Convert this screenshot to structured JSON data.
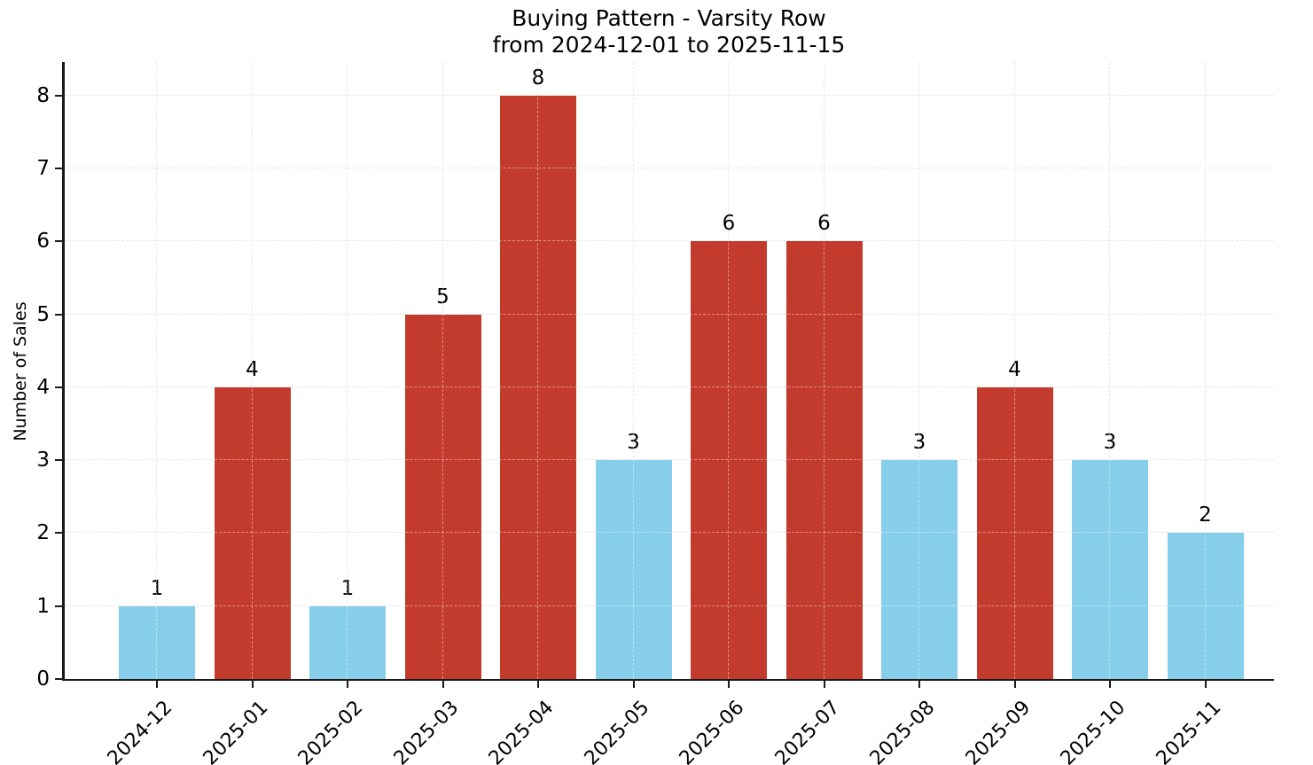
{
  "figure": {
    "title_line1": "Buying Pattern - Varsity Row",
    "title_line2": "from 2024-12-01 to 2025-11-15"
  },
  "chart_data": {
    "type": "bar",
    "title": "Buying Pattern - Varsity Row\nfrom 2024-12-01 to 2025-11-15",
    "xlabel": "",
    "ylabel": "Number of Sales",
    "categories": [
      "2024-12",
      "2025-01",
      "2025-02",
      "2025-03",
      "2025-04",
      "2025-05",
      "2025-06",
      "2025-07",
      "2025-08",
      "2025-09",
      "2025-10",
      "2025-11"
    ],
    "values": [
      1,
      4,
      1,
      5,
      8,
      3,
      6,
      6,
      3,
      4,
      3,
      2
    ],
    "value_labels": [
      "1",
      "4",
      "1",
      "5",
      "8",
      "3",
      "6",
      "6",
      "3",
      "4",
      "3",
      "2"
    ],
    "bar_colors": [
      "#87CEEB",
      "#C23B2C",
      "#87CEEB",
      "#C23B2C",
      "#C23B2C",
      "#87CEEB",
      "#C23B2C",
      "#C23B2C",
      "#87CEEB",
      "#C23B2C",
      "#87CEEB",
      "#87CEEB"
    ],
    "color_legend": {
      "skyblue": "#87CEEB",
      "brick_red": "#C23B2C"
    },
    "yticks": [
      0,
      1,
      2,
      3,
      4,
      5,
      6,
      7,
      8
    ],
    "ylim": [
      0,
      8.46
    ],
    "grid": true,
    "grid_style": "dashed",
    "grid_color": "#d4d4d4",
    "axis_color": "#1a1a1a",
    "xtick_rotation_deg": 45,
    "legend": false
  }
}
